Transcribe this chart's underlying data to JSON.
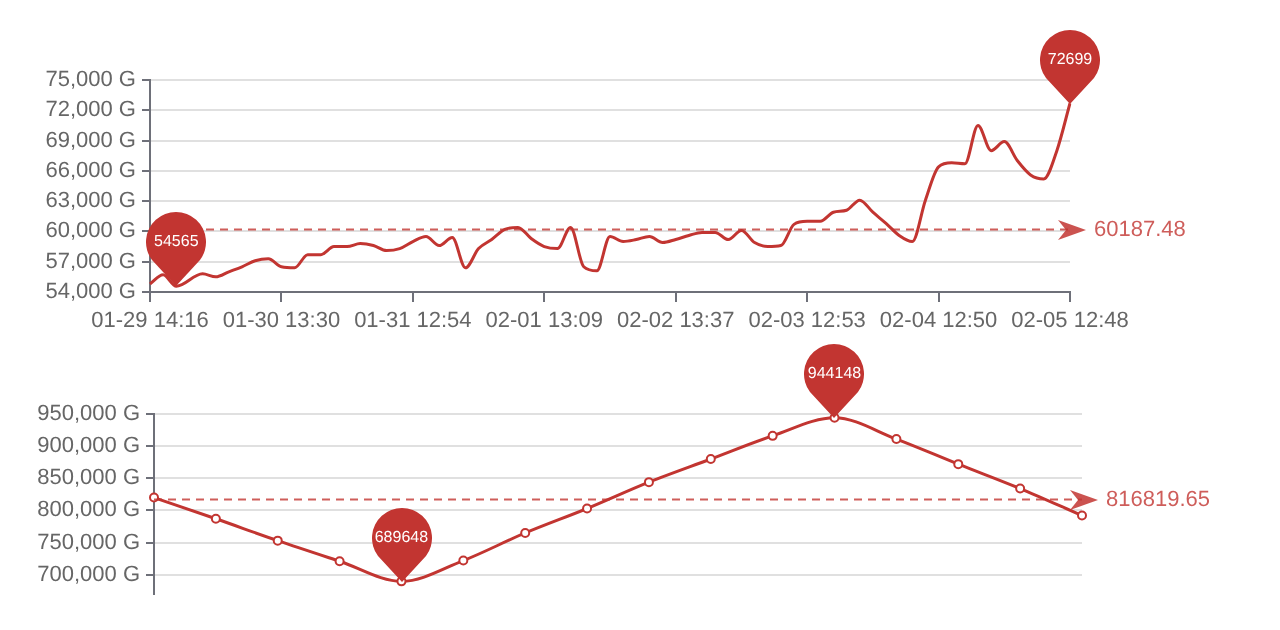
{
  "chart_data": [
    {
      "type": "line",
      "categories": [
        "01-29 14:16",
        null,
        null,
        null,
        null,
        null,
        null,
        null,
        null,
        null,
        "01-30 13:30",
        null,
        null,
        null,
        null,
        null,
        null,
        null,
        null,
        null,
        "01-31 12:54",
        null,
        null,
        null,
        null,
        null,
        null,
        null,
        null,
        null,
        "02-01 13:09",
        null,
        null,
        null,
        null,
        null,
        null,
        null,
        null,
        null,
        "02-02 13:37",
        null,
        null,
        null,
        null,
        null,
        null,
        null,
        null,
        null,
        "02-03 12:53",
        null,
        null,
        null,
        null,
        null,
        null,
        null,
        null,
        null,
        "02-04 12:50",
        null,
        null,
        null,
        null,
        null,
        null,
        null,
        null,
        null,
        "02-05 12:48"
      ],
      "series": [
        {
          "color": "#c23531",
          "values": [
            54800,
            55700,
            54565,
            null,
            55800,
            55500,
            56000,
            56500,
            57100,
            57300,
            56500,
            56400,
            57700,
            57700,
            58500,
            58500,
            58800,
            58600,
            58100,
            58300,
            59000,
            59500,
            58600,
            59400,
            56400,
            58300,
            59200,
            60200,
            60400,
            59300,
            58500,
            58300,
            60400,
            56500,
            56100,
            59500,
            59000,
            59200,
            59500,
            58900,
            59200,
            59600,
            59900,
            59900,
            59200,
            60100,
            58900,
            58500,
            58600,
            60700,
            61000,
            61000,
            61900,
            62100,
            63100,
            61900,
            60800,
            59600,
            59000,
            63100,
            66400,
            66800,
            66700,
            70500,
            68000,
            68900,
            67000,
            65600,
            65200,
            68000,
            72699
          ],
          "value_labels": [
            null,
            null,
            "54565",
            null,
            null,
            null,
            null,
            null,
            null,
            null,
            null,
            null,
            null,
            null,
            null,
            null,
            null,
            null,
            null,
            null,
            null,
            null,
            null,
            null,
            null,
            null,
            null,
            null,
            null,
            null,
            null,
            null,
            null,
            null,
            null,
            null,
            null,
            null,
            null,
            null,
            null,
            null,
            null,
            null,
            null,
            null,
            null,
            null,
            null,
            null,
            null,
            null,
            null,
            null,
            null,
            null,
            null,
            null,
            null,
            null,
            null,
            null,
            null,
            null,
            null,
            null,
            null,
            null,
            null,
            null,
            "72699"
          ]
        }
      ],
      "ylim": [
        54000,
        75000
      ],
      "yticks": [
        {
          "value": 54000,
          "label": "54,000 G"
        },
        {
          "value": 57000,
          "label": "57,000 G"
        },
        {
          "value": 60000,
          "label": "60,000 G"
        },
        {
          "value": 63000,
          "label": "63,000 G"
        },
        {
          "value": 66000,
          "label": "66,000 G"
        },
        {
          "value": 69000,
          "label": "69,000 G"
        },
        {
          "value": 72000,
          "label": "72,000 G"
        },
        {
          "value": 75000,
          "label": "75,000 G"
        }
      ],
      "ref_lines": [
        {
          "axis": "y",
          "value": 60187.48,
          "label": "60187.48",
          "color": "#c23531",
          "line_style": "dashed"
        }
      ],
      "grid": "y",
      "legend": false,
      "marker": "none"
    },
    {
      "type": "line",
      "categories": [
        null,
        null,
        null,
        null,
        null,
        null,
        null,
        null,
        null,
        null,
        null,
        null,
        null,
        null,
        null,
        null
      ],
      "series": [
        {
          "color": "#c23531",
          "values": [
            820000,
            787000,
            753000,
            721000,
            689648,
            722000,
            765000,
            803000,
            844000,
            880000,
            916000,
            944148,
            911000,
            872000,
            834000,
            792000
          ],
          "value_labels": [
            null,
            null,
            null,
            null,
            "689648",
            null,
            null,
            null,
            null,
            null,
            null,
            "944148",
            null,
            null,
            null,
            null
          ]
        }
      ],
      "ylim": [
        670000,
        950000
      ],
      "yticks": [
        {
          "value": 700000,
          "label": "700,000 G"
        },
        {
          "value": 750000,
          "label": "750,000 G"
        },
        {
          "value": 800000,
          "label": "800,000 G"
        },
        {
          "value": 850000,
          "label": "850,000 G"
        },
        {
          "value": 900000,
          "label": "900,000 G"
        },
        {
          "value": 950000,
          "label": "950,000 G"
        }
      ],
      "ref_lines": [
        {
          "axis": "y",
          "value": 816819.65,
          "label": "816819.65",
          "color": "#c23531",
          "line_style": "dashed"
        }
      ],
      "grid": "y",
      "legend": false,
      "marker": "circle",
      "tick_labels": "y"
    }
  ]
}
